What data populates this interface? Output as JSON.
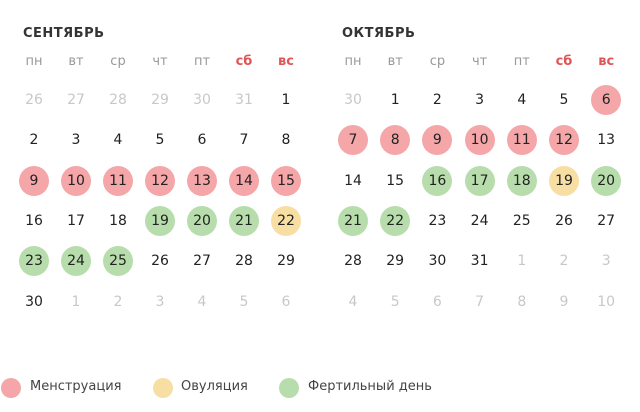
{
  "weekdays": [
    "пн",
    "вт",
    "ср",
    "чт",
    "пт",
    "сб",
    "вс"
  ],
  "legend": [
    {
      "label": "Менструация",
      "color": "#f5a6a8"
    },
    {
      "label": "Овуляция",
      "color": "#f7dea3"
    },
    {
      "label": "Фертильный день",
      "color": "#b8ddac"
    }
  ],
  "months": [
    {
      "title": "СЕНТЯБРЬ",
      "weeks": [
        [
          {
            "day": 26,
            "other": true
          },
          {
            "day": 27,
            "other": true
          },
          {
            "day": 28,
            "other": true
          },
          {
            "day": 29,
            "other": true
          },
          {
            "day": 30,
            "other": true
          },
          {
            "day": 31,
            "other": true
          },
          {
            "day": 1
          }
        ],
        [
          {
            "day": 2
          },
          {
            "day": 3
          },
          {
            "day": 4
          },
          {
            "day": 5
          },
          {
            "day": 6
          },
          {
            "day": 7
          },
          {
            "day": 8
          }
        ],
        [
          {
            "day": 9,
            "mark": 0
          },
          {
            "day": 10,
            "mark": 0
          },
          {
            "day": 11,
            "mark": 0
          },
          {
            "day": 12,
            "mark": 0
          },
          {
            "day": 13,
            "mark": 0
          },
          {
            "day": 14,
            "mark": 0
          },
          {
            "day": 15,
            "mark": 0
          }
        ],
        [
          {
            "day": 16
          },
          {
            "day": 17
          },
          {
            "day": 18
          },
          {
            "day": 19,
            "mark": 2
          },
          {
            "day": 20,
            "mark": 2
          },
          {
            "day": 21,
            "mark": 2
          },
          {
            "day": 22,
            "mark": 1
          }
        ],
        [
          {
            "day": 23,
            "mark": 2
          },
          {
            "day": 24,
            "mark": 2
          },
          {
            "day": 25,
            "mark": 2
          },
          {
            "day": 26
          },
          {
            "day": 27
          },
          {
            "day": 28
          },
          {
            "day": 29
          }
        ],
        [
          {
            "day": 30
          },
          {
            "day": 1,
            "other": true
          },
          {
            "day": 2,
            "other": true
          },
          {
            "day": 3,
            "other": true
          },
          {
            "day": 4,
            "other": true
          },
          {
            "day": 5,
            "other": true
          },
          {
            "day": 6,
            "other": true
          }
        ]
      ]
    },
    {
      "title": "ОКТЯБРЬ",
      "weeks": [
        [
          {
            "day": 30,
            "other": true
          },
          {
            "day": 1
          },
          {
            "day": 2
          },
          {
            "day": 3
          },
          {
            "day": 4
          },
          {
            "day": 5
          },
          {
            "day": 6,
            "mark": 0
          }
        ],
        [
          {
            "day": 7,
            "mark": 0
          },
          {
            "day": 8,
            "mark": 0
          },
          {
            "day": 9,
            "mark": 0
          },
          {
            "day": 10,
            "mark": 0
          },
          {
            "day": 11,
            "mark": 0
          },
          {
            "day": 12,
            "mark": 0
          },
          {
            "day": 13
          }
        ],
        [
          {
            "day": 14
          },
          {
            "day": 15
          },
          {
            "day": 16,
            "mark": 2
          },
          {
            "day": 17,
            "mark": 2
          },
          {
            "day": 18,
            "mark": 2
          },
          {
            "day": 19,
            "mark": 1
          },
          {
            "day": 20,
            "mark": 2
          }
        ],
        [
          {
            "day": 21,
            "mark": 2
          },
          {
            "day": 22,
            "mark": 2
          },
          {
            "day": 23
          },
          {
            "day": 24
          },
          {
            "day": 25
          },
          {
            "day": 26
          },
          {
            "day": 27
          }
        ],
        [
          {
            "day": 28
          },
          {
            "day": 29
          },
          {
            "day": 30
          },
          {
            "day": 31
          },
          {
            "day": 1,
            "other": true
          },
          {
            "day": 2,
            "other": true
          },
          {
            "day": 3,
            "other": true
          }
        ],
        [
          {
            "day": 4,
            "other": true
          },
          {
            "day": 5,
            "other": true
          },
          {
            "day": 6,
            "other": true
          },
          {
            "day": 7,
            "other": true
          },
          {
            "day": 8,
            "other": true
          },
          {
            "day": 9,
            "other": true
          },
          {
            "day": 10,
            "other": true
          }
        ]
      ]
    }
  ]
}
